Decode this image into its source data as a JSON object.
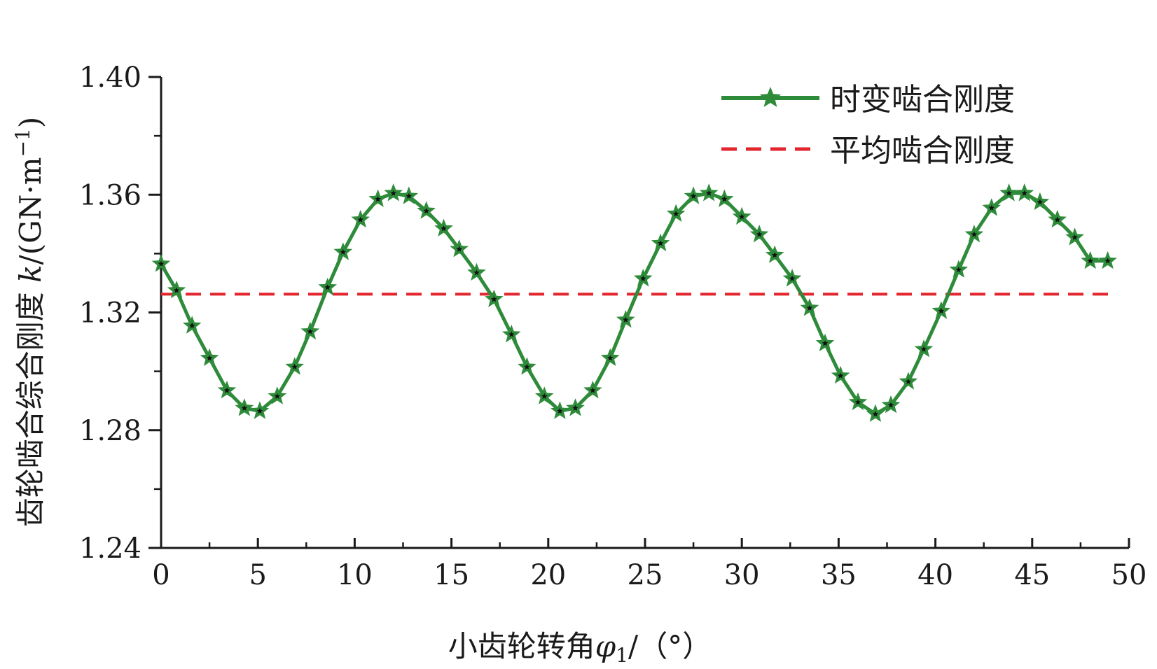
{
  "chart_data": {
    "type": "line",
    "x_label_prefix": "小齿轮转角",
    "x_symbol": "φ",
    "x_symbol_sub": "1",
    "x_label_suffix": "/（°）",
    "y_label_main": "齿轮啮合综合刚度 ",
    "y_symbol": "k",
    "y_label_unit": "/(GN·m",
    "y_label_exp": "−1",
    "y_label_close": ")",
    "xlim": [
      0,
      50
    ],
    "ylim": [
      1.24,
      1.4
    ],
    "x_ticks": [
      0,
      5,
      10,
      15,
      20,
      25,
      30,
      35,
      40,
      45,
      50
    ],
    "x_tick_labels": [
      "0",
      "5",
      "10",
      "15",
      "20",
      "25",
      "30",
      "35",
      "40",
      "45",
      "50"
    ],
    "y_ticks": [
      1.24,
      1.28,
      1.32,
      1.36,
      1.4
    ],
    "y_tick_labels": [
      "1.24",
      "1.28",
      "1.32",
      "1.36",
      "1.40"
    ],
    "y_minor_ticks": [
      1.26,
      1.3,
      1.34,
      1.38
    ],
    "x_minor_step": 2.5,
    "grid": false,
    "legend_position": "top-right",
    "colors": {
      "series": "#2e8b3a",
      "mean": "#e3262e",
      "marker_center": "#111111",
      "axis": "#1a1a1a"
    },
    "series": [
      {
        "name": "时变啮合刚度",
        "style": "solid-star-markers",
        "x": [
          0,
          0.8,
          1.6,
          2.5,
          3.4,
          4.3,
          5.1,
          6.0,
          6.9,
          7.7,
          8.6,
          9.4,
          10.3,
          11.2,
          12.0,
          12.8,
          13.7,
          14.6,
          15.4,
          16.3,
          17.2,
          18.1,
          18.9,
          19.8,
          20.6,
          21.4,
          22.3,
          23.2,
          24.0,
          24.9,
          25.8,
          26.6,
          27.5,
          28.3,
          29.1,
          30.0,
          30.9,
          31.7,
          32.6,
          33.5,
          34.3,
          35.1,
          36.0,
          36.9,
          37.7,
          38.6,
          39.4,
          40.3,
          41.2,
          42.0,
          42.9,
          43.8,
          44.6,
          45.4,
          46.3,
          47.2,
          48.0,
          48.9
        ],
        "y": [
          1.3365,
          1.3275,
          1.3155,
          1.3045,
          1.2935,
          1.2875,
          1.2865,
          1.2915,
          1.3015,
          1.3135,
          1.3285,
          1.3405,
          1.3515,
          1.3585,
          1.3605,
          1.3595,
          1.3545,
          1.3485,
          1.3415,
          1.3335,
          1.3245,
          1.3125,
          1.3015,
          1.2915,
          1.2865,
          1.2875,
          1.2935,
          1.3045,
          1.3175,
          1.3315,
          1.3435,
          1.3535,
          1.3595,
          1.3605,
          1.3585,
          1.3525,
          1.3465,
          1.3395,
          1.3315,
          1.3215,
          1.3095,
          1.2985,
          1.2895,
          1.2855,
          1.2885,
          1.2965,
          1.3075,
          1.3205,
          1.3345,
          1.3465,
          1.3555,
          1.3605,
          1.3605,
          1.3575,
          1.3515,
          1.3455,
          1.3375,
          1.3375
        ]
      },
      {
        "name": "平均啮合刚度",
        "style": "dashed",
        "x": [
          0,
          49
        ],
        "y": [
          1.3262,
          1.3262
        ]
      }
    ]
  }
}
